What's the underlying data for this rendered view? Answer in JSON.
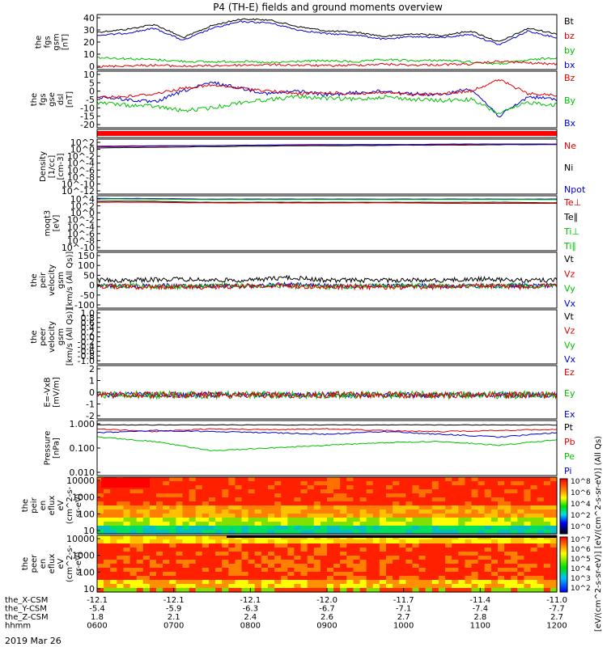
{
  "title": "P4 (TH-E) fields and ground moments overview",
  "date_label": "2019 Mar 26",
  "ephemeris": {
    "rows": [
      {
        "label": "the_X-CSM",
        "values": [
          "-12.1",
          "-12.1",
          "-12.1",
          "-12.0",
          "-11.7",
          "-11.4",
          "-11.0"
        ]
      },
      {
        "label": "the_Y-CSM",
        "values": [
          "-5.4",
          "-5.9",
          "-6.3",
          "-6.7",
          "-7.1",
          "-7.4",
          "-7.7"
        ]
      },
      {
        "label": "the_Z-CSM",
        "values": [
          "1.8",
          "2.1",
          "2.4",
          "2.6",
          "2.7",
          "2.8",
          "2.7"
        ]
      },
      {
        "label": "hhmm",
        "values": [
          "0600",
          "0700",
          "0800",
          "0900",
          "1000",
          "1100",
          "1200"
        ]
      }
    ]
  },
  "colorbar": {
    "label": "[eV/(cm^2-s-sr-eV)] [eV/(cm^2-s-sr-eV)] (All Qs)",
    "top_ticks": [
      "10^8",
      "10^6",
      "10^4",
      "10^2",
      "10^0"
    ],
    "bottom_ticks": [
      "10^7",
      "10^6",
      "10^5",
      "10^4",
      "10^3",
      "10^2"
    ]
  },
  "chart_data": [
    {
      "type": "line",
      "ylabel": [
        "the",
        "fgs",
        "gsm",
        "[nT]"
      ],
      "yticks": [
        "40",
        "30",
        "20",
        "10",
        "0"
      ],
      "ylim": [
        0,
        40
      ],
      "legend": [
        {
          "name": "Bt",
          "color": "#000000"
        },
        {
          "name": "bz",
          "color": "#e00000"
        },
        {
          "name": "by",
          "color": "#00c000"
        },
        {
          "name": "bx",
          "color": "#0000d0"
        }
      ],
      "x": [
        "0600",
        "0700",
        "0800",
        "0900",
        "1000",
        "1100",
        "1200"
      ],
      "series": [
        {
          "name": "Bt",
          "color": "#000000",
          "values": [
            28,
            34,
            36,
            27,
            26,
            30,
            22
          ]
        },
        {
          "name": "bz",
          "color": "#e00000",
          "values": [
            3,
            2,
            4,
            5,
            4,
            6,
            5
          ]
        },
        {
          "name": "by",
          "color": "#00c000",
          "values": [
            8,
            6,
            5,
            3,
            4,
            2,
            8
          ]
        },
        {
          "name": "bx",
          "color": "#0000d0",
          "values": [
            26,
            32,
            34,
            25,
            24,
            27,
            20
          ]
        }
      ]
    },
    {
      "type": "line",
      "ylabel": [
        "the",
        "fgs",
        "gse",
        "dsl",
        "[nT]"
      ],
      "yticks": [
        "10",
        "5",
        "0",
        "-5",
        "-10",
        "-15",
        "-20"
      ],
      "ylim": [
        -20,
        10
      ],
      "legend": [
        {
          "name": "Bz",
          "color": "#e00000"
        },
        {
          "name": "By",
          "color": "#00c000"
        },
        {
          "name": "Bx",
          "color": "#0000d0"
        }
      ]
    },
    {
      "type": "line",
      "ylabel": [],
      "yticks": [],
      "legend": []
    },
    {
      "type": "line",
      "ylabel": [
        "Density",
        "[1/cc]",
        "[cm-3]"
      ],
      "yticks": [
        "10^2",
        "10^0",
        "10^-2",
        "10^-4",
        "10^-6",
        "10^-8",
        "10^-10",
        "10^-12"
      ],
      "legend": [
        {
          "name": "Ne",
          "color": "#e00000"
        },
        {
          "name": "Ni",
          "color": "#000000"
        },
        {
          "name": "Npot",
          "color": "#0000d0"
        }
      ]
    },
    {
      "type": "line",
      "ylabel": [
        "moqt3",
        "[eV]"
      ],
      "yticks": [
        "10^4",
        "10^2",
        "10^0",
        "10^-2",
        "10^-4",
        "10^-6",
        "10^-8",
        "10^-10"
      ],
      "legend": [
        {
          "name": "Te⊥",
          "color": "#e00000"
        },
        {
          "name": "Te∥",
          "color": "#000000"
        },
        {
          "name": "Ti⊥",
          "color": "#00c000"
        },
        {
          "name": "Ti∥",
          "color": "#00c000"
        }
      ]
    },
    {
      "type": "line",
      "ylabel": [
        "the",
        "peir",
        "velocity",
        "gsm",
        "[km/s (All Qs)]"
      ],
      "yticks": [
        "150",
        "100",
        "50",
        "0",
        "-50",
        "-100"
      ],
      "ylim": [
        -100,
        150
      ],
      "legend": [
        {
          "name": "Vt",
          "color": "#000000"
        },
        {
          "name": "Vz",
          "color": "#e00000"
        },
        {
          "name": "Vy",
          "color": "#00c000"
        },
        {
          "name": "Vx",
          "color": "#0000d0"
        }
      ]
    },
    {
      "type": "line",
      "ylabel": [
        "the",
        "peer",
        "velocity",
        "gsm",
        "[km/s (All Qs)]"
      ],
      "yticks": [
        "1.0",
        "0.8",
        "0.6",
        "0.4",
        "0.2",
        "0.0",
        "-0.2",
        "-0.4",
        "-0.6",
        "-0.8",
        "-1.0"
      ],
      "ylim": [
        -1,
        1
      ],
      "legend": [
        {
          "name": "Vt",
          "color": "#000000"
        },
        {
          "name": "Vz",
          "color": "#e00000"
        },
        {
          "name": "Vy",
          "color": "#00c000"
        },
        {
          "name": "Vx",
          "color": "#0000d0"
        }
      ]
    },
    {
      "type": "line",
      "ylabel": [
        "E=-VxB",
        "[mV/m]"
      ],
      "yticks": [
        "2",
        "1",
        "0",
        "-1",
        "-2"
      ],
      "ylim": [
        -2.5,
        2.5
      ],
      "legend": [
        {
          "name": "Ez",
          "color": "#e00000"
        },
        {
          "name": "Ey",
          "color": "#00c000"
        },
        {
          "name": "Ex",
          "color": "#0000d0"
        }
      ]
    },
    {
      "type": "line",
      "ylabel": [
        "Pressure",
        "[nPa]"
      ],
      "yticks": [
        "1.000",
        "0.100",
        "0.010"
      ],
      "legend": [
        {
          "name": "Pt",
          "color": "#000000"
        },
        {
          "name": "Pb",
          "color": "#e00000"
        },
        {
          "name": "Pe",
          "color": "#00c000"
        },
        {
          "name": "Pi",
          "color": "#0000d0"
        }
      ]
    },
    {
      "type": "heatmap",
      "ylabel": [
        "the",
        "peir",
        "en",
        "eflux",
        "eV",
        "(cm^2-s-",
        "sr-eV)"
      ],
      "yticks": [
        "10000",
        "1000",
        "100",
        "10"
      ],
      "legend": []
    },
    {
      "type": "heatmap",
      "ylabel": [
        "the",
        "peer",
        "en",
        "eflux",
        "eV",
        "(cm^2-s-",
        "sr-eV)"
      ],
      "yticks": [
        "10000",
        "1000",
        "100",
        "10"
      ],
      "legend": []
    }
  ]
}
